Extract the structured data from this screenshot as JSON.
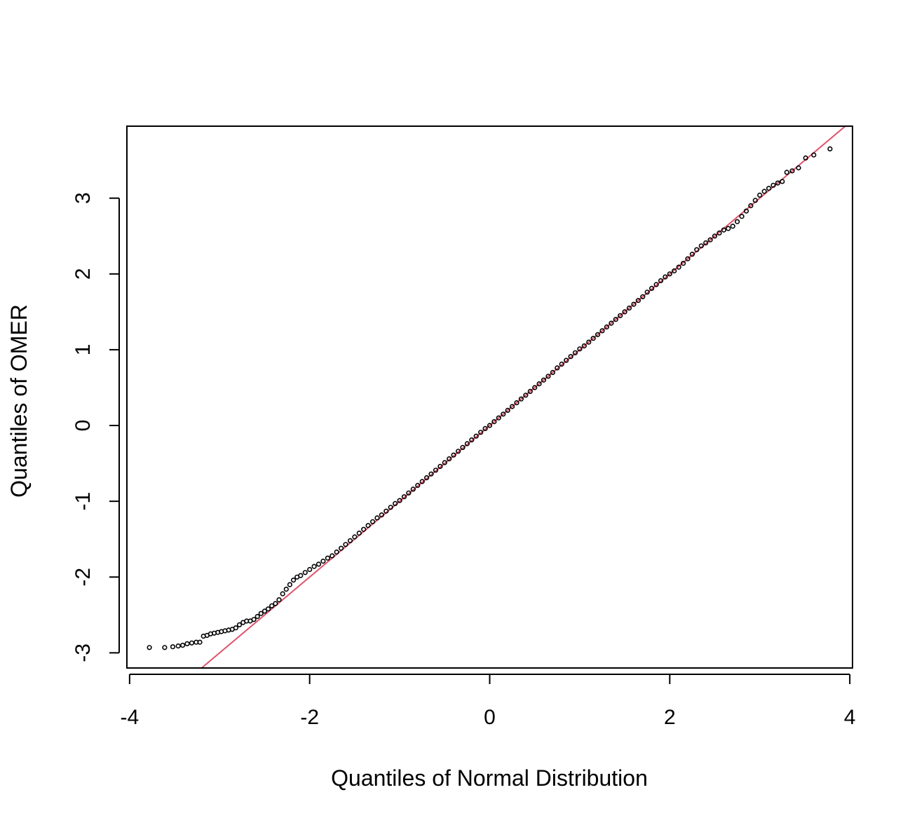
{
  "chart_data": {
    "type": "scatter",
    "title": "",
    "xlabel": "Quantiles of Normal Distribution",
    "ylabel": "Quantiles of OMER",
    "xlim": [
      -4.03,
      4.03
    ],
    "ylim": [
      -3.2,
      3.95
    ],
    "x_ticks": [
      -4,
      -2,
      0,
      2,
      4
    ],
    "x_tick_labels": [
      "-4",
      "-2",
      "0",
      "2",
      "4"
    ],
    "y_ticks": [
      -3,
      -2,
      -1,
      0,
      1,
      2,
      3
    ],
    "y_tick_labels": [
      "-3",
      "-2",
      "-1",
      "0",
      "1",
      "2",
      "3"
    ],
    "grid": false,
    "legend": "none",
    "reference_line": {
      "slope": 1.0,
      "intercept": 0.0,
      "color": "#DF536B"
    },
    "point_color": "#000000",
    "points": [
      [
        -3.78,
        -2.93
      ],
      [
        -3.61,
        -2.93
      ],
      [
        -3.52,
        -2.92
      ],
      [
        -3.46,
        -2.91
      ],
      [
        -3.41,
        -2.9
      ],
      [
        -3.36,
        -2.88
      ],
      [
        -3.31,
        -2.87
      ],
      [
        -3.26,
        -2.86
      ],
      [
        -3.22,
        -2.86
      ],
      [
        -3.18,
        -2.78
      ],
      [
        -3.14,
        -2.77
      ],
      [
        -3.1,
        -2.75
      ],
      [
        -3.06,
        -2.74
      ],
      [
        -3.02,
        -2.73
      ],
      [
        -2.98,
        -2.72
      ],
      [
        -2.94,
        -2.71
      ],
      [
        -2.9,
        -2.7
      ],
      [
        -2.86,
        -2.69
      ],
      [
        -2.82,
        -2.67
      ],
      [
        -2.78,
        -2.63
      ],
      [
        -2.74,
        -2.6
      ],
      [
        -2.7,
        -2.58
      ],
      [
        -2.66,
        -2.58
      ],
      [
        -2.62,
        -2.56
      ],
      [
        -2.58,
        -2.52
      ],
      [
        -2.54,
        -2.48
      ],
      [
        -2.5,
        -2.45
      ],
      [
        -2.46,
        -2.42
      ],
      [
        -2.42,
        -2.38
      ],
      [
        -2.38,
        -2.35
      ],
      [
        -2.34,
        -2.3
      ],
      [
        -2.3,
        -2.22
      ],
      [
        -2.26,
        -2.16
      ],
      [
        -2.22,
        -2.1
      ],
      [
        -2.18,
        -2.04
      ],
      [
        -2.14,
        -2.0
      ],
      [
        -2.1,
        -1.98
      ],
      [
        -2.05,
        -1.94
      ],
      [
        -2.0,
        -1.9
      ],
      [
        -1.95,
        -1.86
      ],
      [
        -1.9,
        -1.83
      ],
      [
        -1.85,
        -1.79
      ],
      [
        -1.8,
        -1.75
      ],
      [
        -1.75,
        -1.72
      ],
      [
        -1.7,
        -1.67
      ],
      [
        -1.65,
        -1.62
      ],
      [
        -1.6,
        -1.57
      ],
      [
        -1.55,
        -1.52
      ],
      [
        -1.5,
        -1.47
      ],
      [
        -1.45,
        -1.42
      ],
      [
        -1.4,
        -1.37
      ],
      [
        -1.35,
        -1.32
      ],
      [
        -1.3,
        -1.27
      ],
      [
        -1.25,
        -1.22
      ],
      [
        -1.2,
        -1.18
      ],
      [
        -1.15,
        -1.13
      ],
      [
        -1.1,
        -1.08
      ],
      [
        -1.05,
        -1.03
      ],
      [
        -1.0,
        -0.99
      ],
      [
        -0.95,
        -0.94
      ],
      [
        -0.9,
        -0.89
      ],
      [
        -0.85,
        -0.84
      ],
      [
        -0.8,
        -0.79
      ],
      [
        -0.75,
        -0.74
      ],
      [
        -0.7,
        -0.69
      ],
      [
        -0.65,
        -0.64
      ],
      [
        -0.6,
        -0.59
      ],
      [
        -0.55,
        -0.54
      ],
      [
        -0.5,
        -0.49
      ],
      [
        -0.45,
        -0.44
      ],
      [
        -0.4,
        -0.39
      ],
      [
        -0.35,
        -0.34
      ],
      [
        -0.3,
        -0.29
      ],
      [
        -0.25,
        -0.24
      ],
      [
        -0.2,
        -0.19
      ],
      [
        -0.15,
        -0.14
      ],
      [
        -0.1,
        -0.09
      ],
      [
        -0.05,
        -0.04
      ],
      [
        0.0,
        0.0
      ],
      [
        0.05,
        0.05
      ],
      [
        0.1,
        0.1
      ],
      [
        0.15,
        0.15
      ],
      [
        0.2,
        0.2
      ],
      [
        0.25,
        0.25
      ],
      [
        0.3,
        0.3
      ],
      [
        0.35,
        0.35
      ],
      [
        0.4,
        0.4
      ],
      [
        0.45,
        0.45
      ],
      [
        0.5,
        0.5
      ],
      [
        0.55,
        0.55
      ],
      [
        0.6,
        0.6
      ],
      [
        0.65,
        0.65
      ],
      [
        0.7,
        0.7
      ],
      [
        0.75,
        0.76
      ],
      [
        0.8,
        0.81
      ],
      [
        0.85,
        0.86
      ],
      [
        0.9,
        0.91
      ],
      [
        0.95,
        0.96
      ],
      [
        1.0,
        1.01
      ],
      [
        1.05,
        1.05
      ],
      [
        1.1,
        1.1
      ],
      [
        1.15,
        1.15
      ],
      [
        1.2,
        1.2
      ],
      [
        1.25,
        1.25
      ],
      [
        1.3,
        1.3
      ],
      [
        1.35,
        1.35
      ],
      [
        1.4,
        1.4
      ],
      [
        1.45,
        1.45
      ],
      [
        1.5,
        1.5
      ],
      [
        1.55,
        1.55
      ],
      [
        1.6,
        1.6
      ],
      [
        1.65,
        1.65
      ],
      [
        1.7,
        1.7
      ],
      [
        1.75,
        1.76
      ],
      [
        1.8,
        1.81
      ],
      [
        1.85,
        1.86
      ],
      [
        1.9,
        1.91
      ],
      [
        1.95,
        1.96
      ],
      [
        2.0,
        2.0
      ],
      [
        2.05,
        2.04
      ],
      [
        2.1,
        2.09
      ],
      [
        2.15,
        2.14
      ],
      [
        2.2,
        2.2
      ],
      [
        2.25,
        2.26
      ],
      [
        2.3,
        2.32
      ],
      [
        2.35,
        2.37
      ],
      [
        2.4,
        2.41
      ],
      [
        2.45,
        2.45
      ],
      [
        2.5,
        2.5
      ],
      [
        2.55,
        2.54
      ],
      [
        2.6,
        2.58
      ],
      [
        2.65,
        2.6
      ],
      [
        2.7,
        2.63
      ],
      [
        2.75,
        2.69
      ],
      [
        2.8,
        2.76
      ],
      [
        2.85,
        2.83
      ],
      [
        2.9,
        2.9
      ],
      [
        2.95,
        2.97
      ],
      [
        3.0,
        3.04
      ],
      [
        3.05,
        3.09
      ],
      [
        3.1,
        3.13
      ],
      [
        3.15,
        3.17
      ],
      [
        3.2,
        3.2
      ],
      [
        3.25,
        3.22
      ],
      [
        3.3,
        3.34
      ],
      [
        3.36,
        3.36
      ],
      [
        3.43,
        3.4
      ],
      [
        3.51,
        3.53
      ],
      [
        3.6,
        3.57
      ],
      [
        3.78,
        3.65
      ]
    ]
  }
}
